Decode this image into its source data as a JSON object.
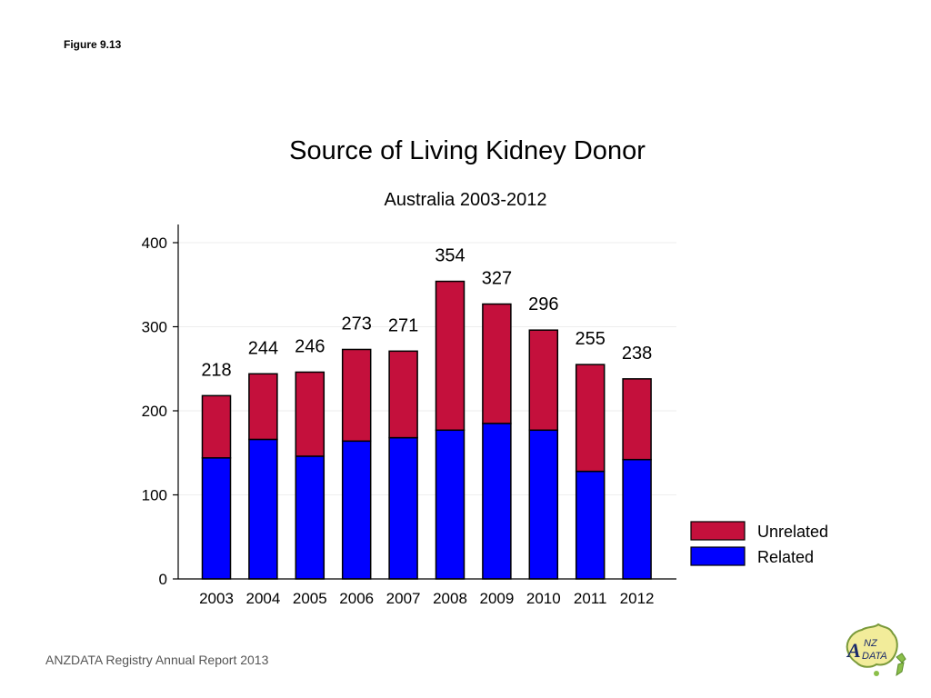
{
  "figure_label": "Figure 9.13",
  "footer_text": "ANZDATA Registry Annual Report 2013",
  "logo": {
    "name": "anzdata-logo",
    "text": "ANZDATA"
  },
  "colors": {
    "related": "#0000ff",
    "unrelated": "#c4103c",
    "outline": "#000000",
    "gridline": "#eeeeee"
  },
  "chart_data": {
    "type": "bar",
    "stacked": true,
    "title": "Source of Living Kidney Donor",
    "subtitle": "Australia 2003-2012",
    "xlabel": "",
    "ylabel": "",
    "categories": [
      "2003",
      "2004",
      "2005",
      "2006",
      "2007",
      "2008",
      "2009",
      "2010",
      "2011",
      "2012"
    ],
    "series": [
      {
        "name": "Related",
        "values": [
          144,
          166,
          146,
          164,
          168,
          177,
          185,
          177,
          128,
          142
        ]
      },
      {
        "name": "Unrelated",
        "values": [
          74,
          78,
          100,
          109,
          103,
          177,
          142,
          119,
          127,
          96
        ]
      }
    ],
    "totals": [
      218,
      244,
      246,
      273,
      271,
      354,
      327,
      296,
      255,
      238
    ],
    "ylim": [
      0,
      400
    ],
    "yticks": [
      0,
      100,
      200,
      300,
      400
    ],
    "grid": true,
    "legend": {
      "position": "right",
      "entries": [
        "Unrelated",
        "Related"
      ]
    }
  }
}
